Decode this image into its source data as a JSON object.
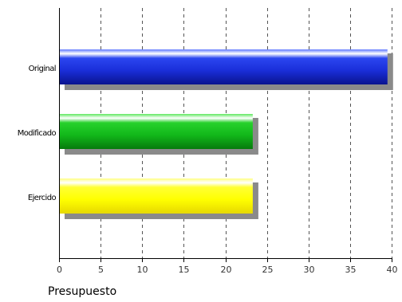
{
  "chart_data": {
    "type": "bar",
    "orientation": "horizontal",
    "xlabel": "Presupuesto",
    "ylabel": "",
    "xlim": [
      0,
      40
    ],
    "xticks": [
      "0",
      "5",
      "10",
      "15",
      "20",
      "25",
      "30",
      "35",
      "40"
    ],
    "grid": "vertical dashed",
    "legend": "none",
    "categories": [
      "Original",
      "Modificado",
      "Ejercido"
    ],
    "values": [
      39.5,
      23.3,
      23.3
    ],
    "colors": [
      "#1a2ed9",
      "#12b81a",
      "#ffff00"
    ]
  }
}
